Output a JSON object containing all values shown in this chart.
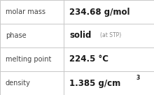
{
  "rows": [
    {
      "label": "molar mass",
      "value": "234.68 g/mol",
      "type": "plain"
    },
    {
      "label": "phase",
      "value": "solid",
      "suffix": "(at STP)",
      "type": "phase"
    },
    {
      "label": "melting point",
      "value": "224.5 °C",
      "type": "plain"
    },
    {
      "label": "density",
      "value": "1.385 g/cm",
      "superscript": "3",
      "type": "super"
    }
  ],
  "background_color": "#ffffff",
  "border_color": "#c8c8c8",
  "label_color": "#444444",
  "value_color": "#1a1a1a",
  "suffix_color": "#888888",
  "label_fontsize": 7.0,
  "value_fontsize": 8.5,
  "suffix_fontsize": 5.5,
  "super_fontsize": 5.5,
  "col_split": 0.415
}
